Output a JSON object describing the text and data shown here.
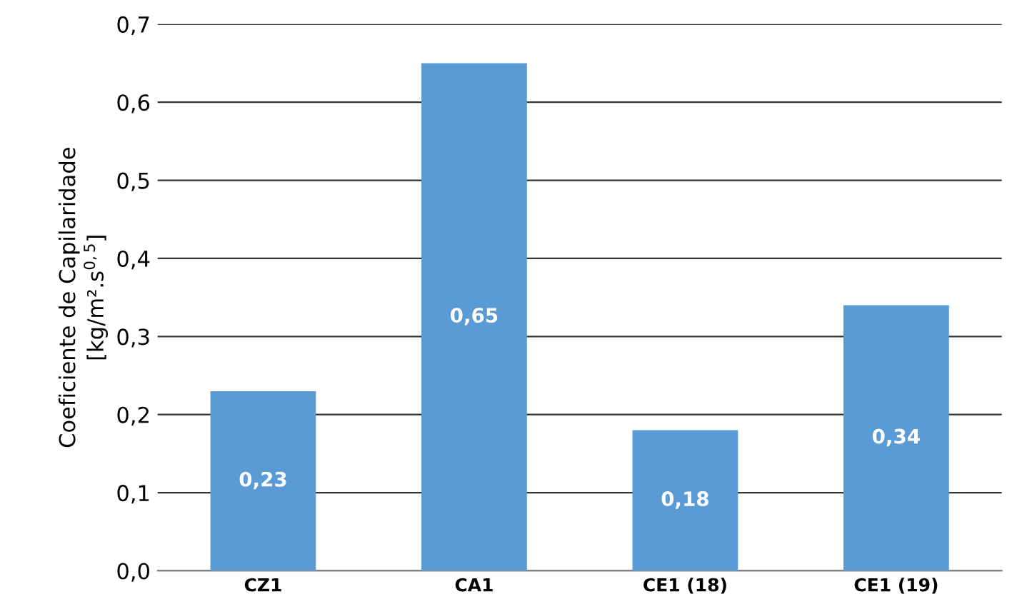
{
  "chart_data": {
    "type": "bar",
    "ylabel": "Coeficiente de Capilaridade\n[kg/m².s$^{0,5}$]",
    "categories": [
      "CZ1",
      "CA1",
      "CE1 (18)",
      "CE1 (19)"
    ],
    "values": [
      0.23,
      0.65,
      0.18,
      0.34
    ],
    "value_labels": [
      "0,23",
      "0,65",
      "0,18",
      "0,34"
    ],
    "color": "#5b9bd5",
    "ylim": [
      0,
      0.7
    ],
    "yticks": [
      {
        "value": 0,
        "label": "0,0"
      },
      {
        "value": 0.1,
        "label": "0,1"
      },
      {
        "value": 0.2,
        "label": "0,2"
      },
      {
        "value": 0.3,
        "label": "0,3"
      },
      {
        "value": 0.4,
        "label": "0,4"
      },
      {
        "value": 0.5,
        "label": "0,5"
      },
      {
        "value": 0.6,
        "label": "0,6"
      },
      {
        "value": 0.7,
        "label": "0,7"
      }
    ],
    "grid": "y"
  }
}
